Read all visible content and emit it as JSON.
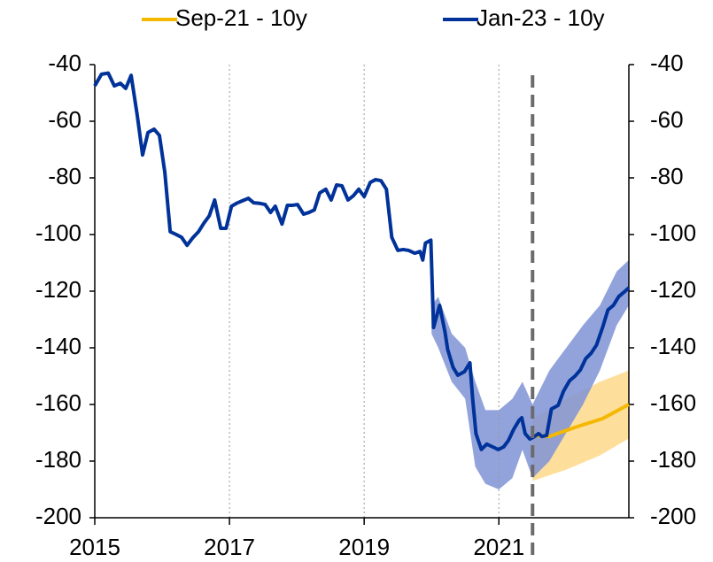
{
  "chart_data": {
    "type": "line",
    "xlim": [
      2015,
      2022.93
    ],
    "xticks": [
      2015,
      2017,
      2019,
      2021
    ],
    "ylim": [
      -200,
      -40
    ],
    "yticks": [
      -40,
      -60,
      -80,
      -100,
      -120,
      -140,
      -160,
      -180,
      -200
    ],
    "y2lim": [
      -200,
      -40
    ],
    "y2ticks": [
      -40,
      -60,
      -80,
      -100,
      -120,
      -140,
      -160,
      -180,
      -200
    ],
    "grid": true,
    "legend": "top",
    "vline": 2021.5,
    "series": [
      {
        "name": "Sep-21 - 10y",
        "color": "#f5b800",
        "x": [
          2021.5,
          2021.75,
          2022.14,
          2022.54,
          2022.93
        ],
        "values": [
          -170.9,
          -171.3,
          -168,
          -165,
          -160
        ]
      },
      {
        "name": "Jan-23 - 10y",
        "color": "#003299",
        "x": [
          2015.0,
          2015.1,
          2015.2,
          2015.29,
          2015.38,
          2015.46,
          2015.54,
          2015.63,
          2015.71,
          2015.79,
          2015.88,
          2015.96,
          2016.04,
          2016.12,
          2016.21,
          2016.29,
          2016.37,
          2016.45,
          2016.54,
          2016.62,
          2016.7,
          2016.78,
          2016.87,
          2016.95,
          2017.03,
          2017.12,
          2017.2,
          2017.28,
          2017.36,
          2017.45,
          2017.53,
          2017.61,
          2017.68,
          2017.78,
          2017.86,
          2017.93,
          2018.01,
          2018.1,
          2018.18,
          2018.26,
          2018.34,
          2018.43,
          2018.51,
          2018.59,
          2018.67,
          2018.76,
          2018.84,
          2018.92,
          2019.0,
          2019.09,
          2019.17,
          2019.25,
          2019.33,
          2019.41,
          2019.5,
          2019.58,
          2019.66,
          2019.75,
          2019.83,
          2019.87,
          2019.91,
          2019.99,
          2020.03,
          2020.12,
          2020.2,
          2020.24,
          2020.32,
          2020.39,
          2020.49,
          2020.57,
          2020.61,
          2020.66,
          2020.74,
          2020.82,
          2020.91,
          2020.99,
          2021.07,
          2021.14,
          2021.22,
          2021.3,
          2021.34,
          2021.39,
          2021.46,
          2021.51,
          2021.59,
          2021.64,
          2021.71,
          2021.78,
          2021.88,
          2021.96,
          2022.05,
          2022.13,
          2022.21,
          2022.29,
          2022.37,
          2022.45,
          2022.54,
          2022.62,
          2022.7,
          2022.78,
          2022.86,
          2022.93
        ],
        "values": [
          -47.5,
          -43.4,
          -43,
          -47.5,
          -46.6,
          -48.4,
          -43.8,
          -57.8,
          -71.9,
          -64,
          -62.8,
          -65,
          -78,
          -99,
          -100,
          -101,
          -103.8,
          -101.3,
          -99,
          -96,
          -93.4,
          -87.8,
          -97.8,
          -97.8,
          -90,
          -88.8,
          -88,
          -87.2,
          -88.8,
          -89,
          -89.4,
          -92.2,
          -90,
          -96.3,
          -89.7,
          -89.7,
          -89.4,
          -92.8,
          -92.2,
          -91.3,
          -85.3,
          -84,
          -87.8,
          -82.5,
          -82.8,
          -87.8,
          -86.3,
          -84,
          -86.6,
          -81.6,
          -80.6,
          -81,
          -84,
          -101,
          -105.6,
          -105.3,
          -105.6,
          -106.6,
          -106,
          -109,
          -103,
          -102,
          -132.8,
          -125,
          -134.4,
          -140.6,
          -146.9,
          -149.7,
          -148.4,
          -145.3,
          -157.8,
          -170.3,
          -175.9,
          -174,
          -175,
          -175.9,
          -175,
          -172.8,
          -168.8,
          -165.6,
          -164.7,
          -170.3,
          -172.2,
          -171.6,
          -170.3,
          -171.3,
          -170.9,
          -161.6,
          -160.3,
          -155.3,
          -151.6,
          -150,
          -147.8,
          -143.8,
          -141.9,
          -139,
          -132.8,
          -126.6,
          -125,
          -121.9,
          -120.3,
          -118.8
        ]
      }
    ],
    "bands": [
      {
        "color": "#fdd98a",
        "x": [
          2021.5,
          2022.0,
          2022.5,
          2022.93
        ],
        "upper": [
          -165,
          -158,
          -152,
          -148
        ],
        "lower": [
          -187,
          -183,
          -178,
          -172
        ]
      },
      {
        "color": "#7f93d6",
        "x": [
          2020.0,
          2020.1,
          2020.3,
          2020.5,
          2020.65,
          2020.8,
          2021.0,
          2021.2,
          2021.35,
          2021.5,
          2021.75,
          2022.0,
          2022.25,
          2022.5,
          2022.75,
          2022.93
        ],
        "upper": [
          -125,
          -122,
          -135,
          -140,
          -152,
          -162,
          -162,
          -158,
          -152,
          -160,
          -148,
          -140,
          -132,
          -125,
          -113,
          -109
        ],
        "lower": [
          -135,
          -140,
          -152,
          -158,
          -182,
          -188,
          -190,
          -186,
          -176,
          -186,
          -180,
          -170,
          -160,
          -148,
          -132,
          -125
        ]
      }
    ]
  }
}
